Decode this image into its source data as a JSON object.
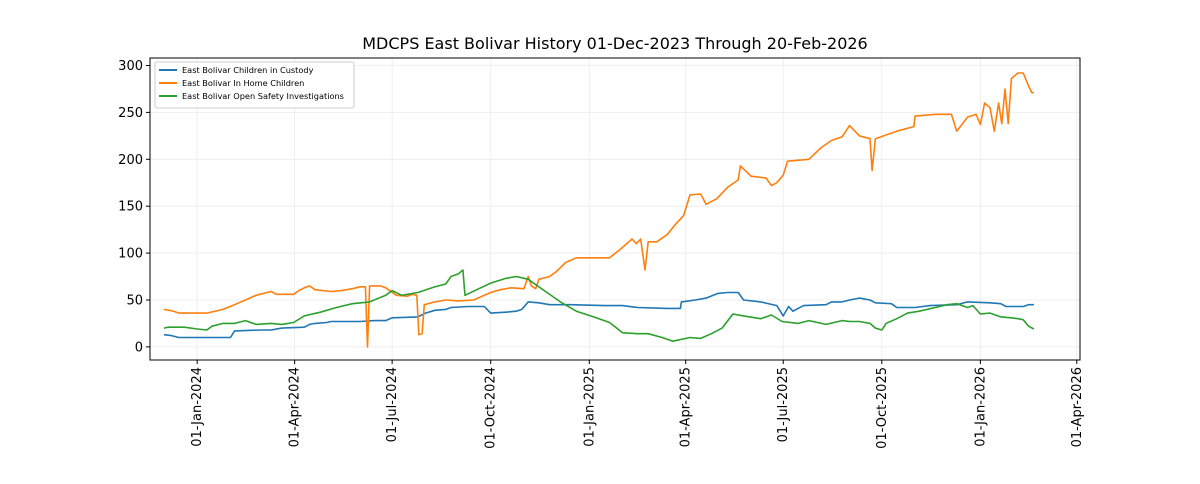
{
  "chart_data": {
    "type": "line",
    "title": "MDCPS East Bolivar History 01-Dec-2023 Through 20-Feb-2026",
    "xlabel": "",
    "ylabel": "",
    "xlim": [
      "2023-11-18",
      "2026-04-04"
    ],
    "ylim": [
      -14,
      308
    ],
    "grid": true,
    "legend_position": "top-left",
    "x_ticks": [
      "01-Jan-2024",
      "01-Apr-2024",
      "01-Jul-2024",
      "01-Oct-2024",
      "01-Jan-2025",
      "01-Apr-2025",
      "01-Jul-2025",
      "01-Oct-2025",
      "01-Jan-2026",
      "01-Apr-2026"
    ],
    "y_ticks": [
      0,
      50,
      100,
      150,
      200,
      250,
      300
    ],
    "series": [
      {
        "name": "East Bolivar Children in Custody",
        "color": "#1f77b4",
        "points": [
          [
            "2023-12-01",
            13
          ],
          [
            "2023-12-08",
            12
          ],
          [
            "2023-12-15",
            10
          ],
          [
            "2024-01-15",
            10
          ],
          [
            "2024-02-01",
            10
          ],
          [
            "2024-02-05",
            17
          ],
          [
            "2024-03-01",
            18
          ],
          [
            "2024-03-10",
            18
          ],
          [
            "2024-03-20",
            20
          ],
          [
            "2024-04-10",
            21
          ],
          [
            "2024-04-15",
            24
          ],
          [
            "2024-04-20",
            25
          ],
          [
            "2024-05-01",
            26
          ],
          [
            "2024-05-05",
            27
          ],
          [
            "2024-06-01",
            27
          ],
          [
            "2024-06-15",
            28
          ],
          [
            "2024-06-25",
            28
          ],
          [
            "2024-07-01",
            31
          ],
          [
            "2024-07-25",
            32
          ],
          [
            "2024-08-01",
            36
          ],
          [
            "2024-08-10",
            39
          ],
          [
            "2024-08-20",
            40
          ],
          [
            "2024-08-25",
            42
          ],
          [
            "2024-09-10",
            43
          ],
          [
            "2024-09-25",
            43
          ],
          [
            "2024-10-01",
            36
          ],
          [
            "2024-10-15",
            37
          ],
          [
            "2024-10-25",
            38
          ],
          [
            "2024-10-30",
            40
          ],
          [
            "2024-11-05",
            48
          ],
          [
            "2024-11-15",
            47
          ],
          [
            "2024-11-25",
            45
          ],
          [
            "2024-12-15",
            45
          ],
          [
            "2025-01-15",
            44
          ],
          [
            "2025-02-01",
            44
          ],
          [
            "2025-02-15",
            42
          ],
          [
            "2025-03-15",
            41
          ],
          [
            "2025-03-27",
            41
          ],
          [
            "2025-03-28",
            48
          ],
          [
            "2025-04-10",
            50
          ],
          [
            "2025-04-20",
            52
          ],
          [
            "2025-05-01",
            57
          ],
          [
            "2025-05-10",
            58
          ],
          [
            "2025-05-20",
            58
          ],
          [
            "2025-05-25",
            50
          ],
          [
            "2025-06-10",
            48
          ],
          [
            "2025-06-25",
            44
          ],
          [
            "2025-07-01",
            33
          ],
          [
            "2025-07-06",
            43
          ],
          [
            "2025-07-10",
            38
          ],
          [
            "2025-07-20",
            44
          ],
          [
            "2025-08-10",
            45
          ],
          [
            "2025-08-15",
            48
          ],
          [
            "2025-08-25",
            48
          ],
          [
            "2025-09-01",
            50
          ],
          [
            "2025-09-10",
            52
          ],
          [
            "2025-09-20",
            50
          ],
          [
            "2025-09-25",
            47
          ],
          [
            "2025-10-10",
            46
          ],
          [
            "2025-10-15",
            42
          ],
          [
            "2025-11-01",
            42
          ],
          [
            "2025-11-15",
            44
          ],
          [
            "2025-12-10",
            45
          ],
          [
            "2025-12-20",
            48
          ],
          [
            "2026-01-10",
            47
          ],
          [
            "2026-01-20",
            46
          ],
          [
            "2026-01-25",
            43
          ],
          [
            "2026-02-10",
            43
          ],
          [
            "2026-02-15",
            45
          ],
          [
            "2026-02-20",
            45
          ]
        ]
      },
      {
        "name": "East Bolivar In Home Children",
        "color": "#ff7f0e",
        "points": [
          [
            "2023-12-01",
            40
          ],
          [
            "2023-12-10",
            38
          ],
          [
            "2023-12-15",
            36
          ],
          [
            "2024-01-10",
            36
          ],
          [
            "2024-01-25",
            40
          ],
          [
            "2024-02-05",
            45
          ],
          [
            "2024-02-15",
            50
          ],
          [
            "2024-02-25",
            55
          ],
          [
            "2024-03-10",
            59
          ],
          [
            "2024-03-15",
            56
          ],
          [
            "2024-03-31",
            56
          ],
          [
            "2024-04-05",
            60
          ],
          [
            "2024-04-10",
            63
          ],
          [
            "2024-04-15",
            65
          ],
          [
            "2024-04-20",
            61
          ],
          [
            "2024-05-05",
            59
          ],
          [
            "2024-05-15",
            60
          ],
          [
            "2024-05-25",
            62
          ],
          [
            "2024-06-01",
            64
          ],
          [
            "2024-06-06",
            64
          ],
          [
            "2024-06-08",
            0
          ],
          [
            "2024-06-10",
            65
          ],
          [
            "2024-06-20",
            65
          ],
          [
            "2024-06-25",
            63
          ],
          [
            "2024-07-05",
            55
          ],
          [
            "2024-07-15",
            54
          ],
          [
            "2024-07-20",
            56
          ],
          [
            "2024-07-24",
            55
          ],
          [
            "2024-07-26",
            13
          ],
          [
            "2024-07-29",
            14
          ],
          [
            "2024-07-31",
            45
          ],
          [
            "2024-08-10",
            48
          ],
          [
            "2024-08-20",
            50
          ],
          [
            "2024-09-01",
            49
          ],
          [
            "2024-09-15",
            50
          ],
          [
            "2024-10-01",
            58
          ],
          [
            "2024-10-10",
            61
          ],
          [
            "2024-10-20",
            63
          ],
          [
            "2024-11-01",
            62
          ],
          [
            "2024-11-05",
            75
          ],
          [
            "2024-11-08",
            65
          ],
          [
            "2024-11-12",
            62
          ],
          [
            "2024-11-15",
            72
          ],
          [
            "2024-11-25",
            75
          ],
          [
            "2024-12-01",
            80
          ],
          [
            "2024-12-10",
            90
          ],
          [
            "2024-12-20",
            95
          ],
          [
            "2025-01-20",
            95
          ],
          [
            "2025-01-31",
            105
          ],
          [
            "2025-02-10",
            115
          ],
          [
            "2025-02-14",
            110
          ],
          [
            "2025-02-18",
            115
          ],
          [
            "2025-02-22",
            82
          ],
          [
            "2025-02-25",
            112
          ],
          [
            "2025-03-05",
            112
          ],
          [
            "2025-03-15",
            120
          ],
          [
            "2025-03-22",
            130
          ],
          [
            "2025-03-30",
            140
          ],
          [
            "2025-04-05",
            162
          ],
          [
            "2025-04-15",
            163
          ],
          [
            "2025-04-20",
            152
          ],
          [
            "2025-04-30",
            158
          ],
          [
            "2025-05-10",
            170
          ],
          [
            "2025-05-20",
            178
          ],
          [
            "2025-05-22",
            193
          ],
          [
            "2025-06-01",
            182
          ],
          [
            "2025-06-15",
            180
          ],
          [
            "2025-06-20",
            172
          ],
          [
            "2025-06-25",
            175
          ],
          [
            "2025-07-01",
            183
          ],
          [
            "2025-07-05",
            198
          ],
          [
            "2025-07-25",
            200
          ],
          [
            "2025-08-05",
            212
          ],
          [
            "2025-08-15",
            220
          ],
          [
            "2025-08-25",
            224
          ],
          [
            "2025-09-01",
            236
          ],
          [
            "2025-09-10",
            225
          ],
          [
            "2025-09-20",
            222
          ],
          [
            "2025-09-22",
            188
          ],
          [
            "2025-09-25",
            222
          ],
          [
            "2025-10-15",
            230
          ],
          [
            "2025-10-31",
            235
          ],
          [
            "2025-11-01",
            246
          ],
          [
            "2025-11-20",
            248
          ],
          [
            "2025-12-05",
            248
          ],
          [
            "2025-12-10",
            230
          ],
          [
            "2025-12-20",
            245
          ],
          [
            "2025-12-28",
            248
          ],
          [
            "2026-01-01",
            237
          ],
          [
            "2026-01-05",
            260
          ],
          [
            "2026-01-10",
            255
          ],
          [
            "2026-01-14",
            230
          ],
          [
            "2026-01-18",
            260
          ],
          [
            "2026-01-21",
            238
          ],
          [
            "2026-01-24",
            275
          ],
          [
            "2026-01-27",
            238
          ],
          [
            "2026-01-30",
            286
          ],
          [
            "2026-02-05",
            292
          ],
          [
            "2026-02-10",
            292
          ],
          [
            "2026-02-15",
            278
          ],
          [
            "2026-02-18",
            271
          ],
          [
            "2026-02-20",
            271
          ]
        ]
      },
      {
        "name": "East Bolivar Open Safety Investigations",
        "color": "#2ca02c",
        "points": [
          [
            "2023-12-01",
            20
          ],
          [
            "2023-12-05",
            21
          ],
          [
            "2023-12-20",
            21
          ],
          [
            "2024-01-01",
            19
          ],
          [
            "2024-01-10",
            18
          ],
          [
            "2024-01-15",
            22
          ],
          [
            "2024-01-25",
            25
          ],
          [
            "2024-02-05",
            25
          ],
          [
            "2024-02-15",
            28
          ],
          [
            "2024-02-25",
            24
          ],
          [
            "2024-03-10",
            25
          ],
          [
            "2024-03-20",
            24
          ],
          [
            "2024-03-31",
            26
          ],
          [
            "2024-04-10",
            33
          ],
          [
            "2024-04-25",
            37
          ],
          [
            "2024-05-10",
            42
          ],
          [
            "2024-05-25",
            46
          ],
          [
            "2024-06-10",
            48
          ],
          [
            "2024-06-25",
            55
          ],
          [
            "2024-07-01",
            60
          ],
          [
            "2024-07-10",
            55
          ],
          [
            "2024-07-25",
            58
          ],
          [
            "2024-08-10",
            64
          ],
          [
            "2024-08-20",
            67
          ],
          [
            "2024-08-25",
            75
          ],
          [
            "2024-09-01",
            78
          ],
          [
            "2024-09-05",
            82
          ],
          [
            "2024-09-07",
            55
          ],
          [
            "2024-09-20",
            62
          ],
          [
            "2024-10-01",
            68
          ],
          [
            "2024-10-15",
            73
          ],
          [
            "2024-10-25",
            75
          ],
          [
            "2024-11-05",
            72
          ],
          [
            "2024-11-20",
            60
          ],
          [
            "2024-12-05",
            48
          ],
          [
            "2024-12-20",
            38
          ],
          [
            "2025-01-05",
            32
          ],
          [
            "2025-01-20",
            26
          ],
          [
            "2025-02-01",
            15
          ],
          [
            "2025-02-15",
            14
          ],
          [
            "2025-02-25",
            14
          ],
          [
            "2025-03-10",
            10
          ],
          [
            "2025-03-20",
            6
          ],
          [
            "2025-04-05",
            10
          ],
          [
            "2025-04-15",
            9
          ],
          [
            "2025-04-25",
            14
          ],
          [
            "2025-05-05",
            20
          ],
          [
            "2025-05-15",
            35
          ],
          [
            "2025-05-25",
            33
          ],
          [
            "2025-06-10",
            30
          ],
          [
            "2025-06-20",
            34
          ],
          [
            "2025-06-30",
            27
          ],
          [
            "2025-07-15",
            25
          ],
          [
            "2025-07-25",
            28
          ],
          [
            "2025-08-10",
            24
          ],
          [
            "2025-08-25",
            28
          ],
          [
            "2025-09-01",
            27
          ],
          [
            "2025-09-10",
            27
          ],
          [
            "2025-09-20",
            25
          ],
          [
            "2025-09-25",
            20
          ],
          [
            "2025-10-01",
            18
          ],
          [
            "2025-10-05",
            25
          ],
          [
            "2025-10-15",
            30
          ],
          [
            "2025-10-25",
            36
          ],
          [
            "2025-11-05",
            38
          ],
          [
            "2025-11-20",
            42
          ],
          [
            "2025-12-01",
            45
          ],
          [
            "2025-12-10",
            46
          ],
          [
            "2025-12-20",
            42
          ],
          [
            "2025-12-25",
            44
          ],
          [
            "2026-01-01",
            35
          ],
          [
            "2026-01-10",
            36
          ],
          [
            "2026-01-20",
            32
          ],
          [
            "2026-01-30",
            31
          ],
          [
            "2026-02-05",
            30
          ],
          [
            "2026-02-10",
            29
          ],
          [
            "2026-02-15",
            22
          ],
          [
            "2026-02-20",
            19
          ]
        ]
      }
    ]
  }
}
